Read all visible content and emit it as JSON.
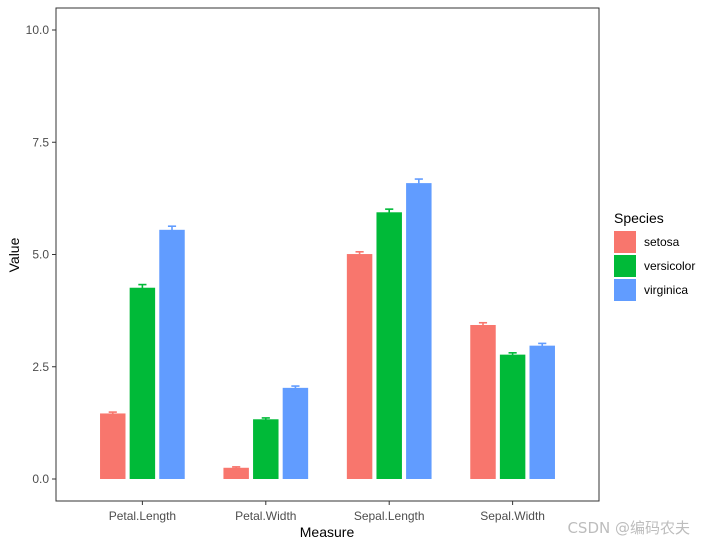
{
  "chart_data": {
    "type": "bar",
    "title": "",
    "xlabel": "Measure",
    "ylabel": "Value",
    "ylim": [
      0,
      10
    ],
    "yticks": [
      0.0,
      2.5,
      5.0,
      7.5,
      10.0
    ],
    "ytick_labels": [
      "0.0",
      "2.5",
      "5.0",
      "7.5",
      "10.0"
    ],
    "categories": [
      "Petal.Length",
      "Petal.Width",
      "Sepal.Length",
      "Sepal.Width"
    ],
    "series": [
      {
        "name": "setosa",
        "color": "#F8766D",
        "values": [
          1.46,
          0.25,
          5.01,
          3.43
        ],
        "errors": [
          0.03,
          0.02,
          0.05,
          0.05
        ]
      },
      {
        "name": "versicolor",
        "color": "#00BA38",
        "values": [
          4.26,
          1.33,
          5.94,
          2.77
        ],
        "errors": [
          0.07,
          0.03,
          0.07,
          0.04
        ]
      },
      {
        "name": "virginica",
        "color": "#619CFF",
        "values": [
          5.55,
          2.03,
          6.59,
          2.97
        ],
        "errors": [
          0.08,
          0.04,
          0.09,
          0.05
        ]
      }
    ],
    "grid": false,
    "legend": {
      "title": "Species",
      "position": "right"
    }
  },
  "watermark": "CSDN @编码农夫"
}
